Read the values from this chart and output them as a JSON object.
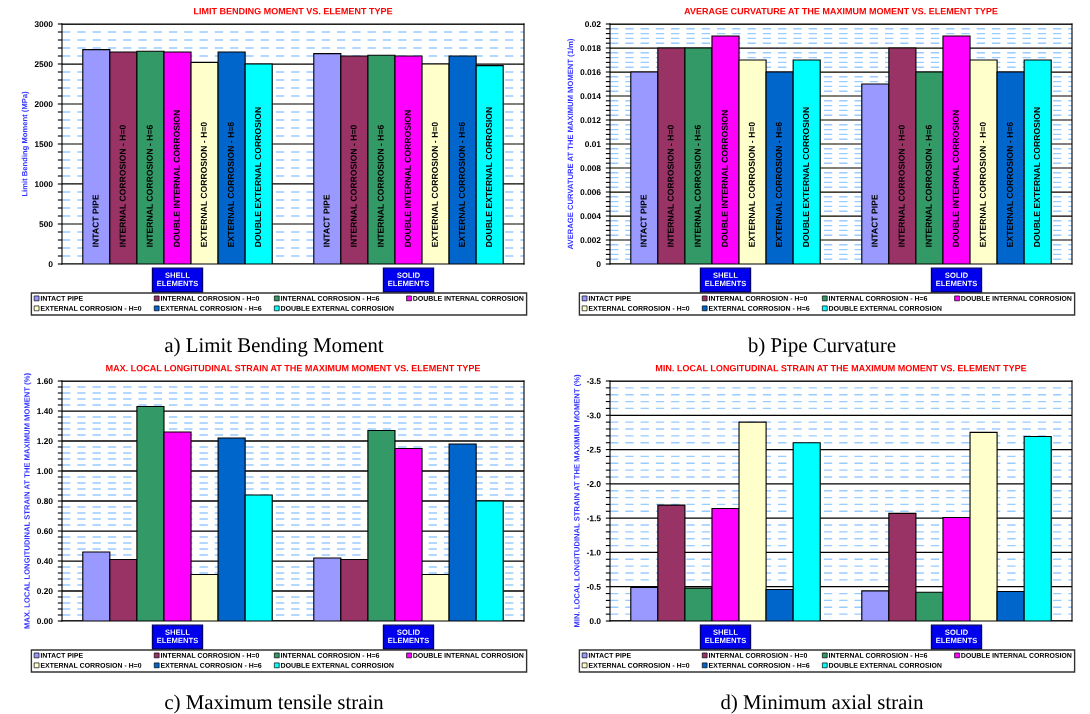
{
  "chart_data": [
    {
      "type": "bar",
      "title": "LIMIT BENDING MOMENT VS. ELEMENT TYPE",
      "subtitle": "a) Limit Bending Moment",
      "ylabel": "Limit Bending Moment (MPa)",
      "categories": [
        "SHELL ELEMENTS",
        "SOLID ELEMENTS"
      ],
      "ylim": [
        0,
        3000
      ],
      "yticks": [
        0,
        {
          "value": 100,
          "label": null
        },
        {
          "value": 200,
          "label": null
        },
        {
          "value": 300,
          "label": null
        },
        {
          "value": 400,
          "label": null
        },
        500,
        {
          "value": 600,
          "label": null
        },
        {
          "value": 700,
          "label": null
        },
        {
          "value": 800,
          "label": null
        },
        {
          "value": 900,
          "label": null
        },
        1000,
        {
          "value": 1100,
          "label": null
        },
        {
          "value": 1200,
          "label": null
        },
        {
          "value": 1300,
          "label": null
        },
        {
          "value": 1400,
          "label": null
        },
        1500,
        {
          "value": 1600,
          "label": null
        },
        {
          "value": 1700,
          "label": null
        },
        {
          "value": 1800,
          "label": null
        },
        {
          "value": 1900,
          "label": null
        },
        2000,
        {
          "value": 2100,
          "label": null
        },
        {
          "value": 2200,
          "label": null
        },
        {
          "value": 2300,
          "label": null
        },
        {
          "value": 2400,
          "label": null
        },
        2500,
        {
          "value": 2600,
          "label": null
        },
        {
          "value": 2700,
          "label": null
        },
        {
          "value": 2800,
          "label": null
        },
        {
          "value": 2900,
          "label": null
        },
        3000
      ],
      "grid": "y",
      "legend": "bottom",
      "series": [
        {
          "name": "INTACT PIPE",
          "color": "#9999ff",
          "values": [
            2680,
            2630
          ]
        },
        {
          "name": "INTERNAL CORROSION - H=0",
          "color": "#993366",
          "values": [
            2650,
            2600
          ]
        },
        {
          "name": "INTERNAL CORROSION - H=6",
          "color": "#339966",
          "values": [
            2660,
            2610
          ]
        },
        {
          "name": "DOUBLE INTERNAL CORROSION",
          "color": "#ff00ff",
          "values": [
            2650,
            2600
          ]
        },
        {
          "name": "EXTERNAL CORROSION - H=0",
          "color": "#ffffcc",
          "values": [
            2520,
            2500
          ]
        },
        {
          "name": "EXTERNAL CORROSION - H=6",
          "color": "#0066cc",
          "values": [
            2650,
            2600
          ]
        },
        {
          "name": "DOUBLE EXTERNAL CORROSION",
          "color": "#00ffff",
          "values": [
            2500,
            2480
          ]
        }
      ],
      "annotations": [
        "INTACT PIPE",
        "INTERNAL CORROSION - H=0",
        "INTERNAL CORROSION - H=6",
        "DOUBLE INTERNAL CORROSION",
        "EXTERNAL CORROSION - H=0",
        "EXTERNAL CORROSION - H=6",
        "DOUBLE EXTERNAL CORROSION",
        "INTACT PIPE",
        "INTERNAL CORROSION - H=0",
        "INTERNAL CORROSION - H=6",
        "DOUBLE INTERNAL CORROSION",
        "EXTERNAL CORROSION - H=0",
        "EXTERNAL CORROSION - H=6",
        "DOUBLE EXTERNAL CORROSION"
      ]
    },
    {
      "type": "bar",
      "title": "AVERAGE CURVATURE AT THE MAXIMUM MOMENT VS. ELEMENT TYPE",
      "subtitle": "b) Pipe Curvature",
      "ylabel": "AVERAGE CURVATURE AT THE MAXIMUM MOMENT (1/m)",
      "categories": [
        "SHELL ELEMENTS",
        "SOLID ELEMENTS"
      ],
      "ylim": [
        0,
        0.02
      ],
      "yticks": [
        0,
        {
          "value": 0.0004,
          "label": null
        },
        {
          "value": 0.0008,
          "label": null
        },
        {
          "value": 0.0012,
          "label": null
        },
        {
          "value": 0.0016,
          "label": null
        },
        0.002,
        {
          "value": 0.0024,
          "label": null
        },
        {
          "value": 0.0028,
          "label": null
        },
        {
          "value": 0.0032,
          "label": null
        },
        {
          "value": 0.0036,
          "label": null
        },
        0.004,
        {
          "value": 0.0044,
          "label": null
        },
        {
          "value": 0.0048,
          "label": null
        },
        {
          "value": 0.0052,
          "label": null
        },
        {
          "value": 0.0056,
          "label": null
        },
        0.006,
        {
          "value": 0.0064,
          "label": null
        },
        {
          "value": 0.0068,
          "label": null
        },
        {
          "value": 0.0072,
          "label": null
        },
        {
          "value": 0.0076,
          "label": null
        },
        0.008,
        {
          "value": 0.0084,
          "label": null
        },
        {
          "value": 0.0088,
          "label": null
        },
        {
          "value": 0.0092,
          "label": null
        },
        {
          "value": 0.0096,
          "label": null
        },
        0.01,
        {
          "value": 0.0104,
          "label": null
        },
        {
          "value": 0.0108,
          "label": null
        },
        {
          "value": 0.0112,
          "label": null
        },
        {
          "value": 0.0116,
          "label": null
        },
        0.012,
        {
          "value": 0.0124,
          "label": null
        },
        {
          "value": 0.0128,
          "label": null
        },
        {
          "value": 0.0132,
          "label": null
        },
        {
          "value": 0.0136,
          "label": null
        },
        0.014,
        {
          "value": 0.0144,
          "label": null
        },
        {
          "value": 0.0148,
          "label": null
        },
        {
          "value": 0.0152,
          "label": null
        },
        {
          "value": 0.0156,
          "label": null
        },
        0.016,
        {
          "value": 0.0164,
          "label": null
        },
        {
          "value": 0.0168,
          "label": null
        },
        {
          "value": 0.0172,
          "label": null
        },
        {
          "value": 0.0176,
          "label": null
        },
        0.018,
        {
          "value": 0.0184,
          "label": null
        },
        {
          "value": 0.0188,
          "label": null
        },
        {
          "value": 0.0192,
          "label": null
        },
        {
          "value": 0.0196,
          "label": null
        },
        0.02
      ],
      "grid": "y",
      "legend": "bottom",
      "series": [
        {
          "name": "INTACT PIPE",
          "color": "#9999ff",
          "values": [
            0.016,
            0.015
          ]
        },
        {
          "name": "INTERNAL CORROSION - H=0",
          "color": "#993366",
          "values": [
            0.018,
            0.018
          ]
        },
        {
          "name": "INTERNAL CORROSION - H=6",
          "color": "#339966",
          "values": [
            0.018,
            0.016
          ]
        },
        {
          "name": "DOUBLE INTERNAL CORROSION",
          "color": "#ff00ff",
          "values": [
            0.019,
            0.019
          ]
        },
        {
          "name": "EXTERNAL CORROSION - H=0",
          "color": "#ffffcc",
          "values": [
            0.017,
            0.017
          ]
        },
        {
          "name": "EXTERNAL CORROSION - H=6",
          "color": "#0066cc",
          "values": [
            0.016,
            0.016
          ]
        },
        {
          "name": "DOUBLE EXTERNAL CORROSION",
          "color": "#00ffff",
          "values": [
            0.017,
            0.017
          ]
        }
      ],
      "annotations": [
        "INTACT PIPE",
        "INTERNAL CORROSION - H=0",
        "INTERNAL CORROSION - H=6",
        "DOUBLE INTERNAL CORROSION",
        "EXTERNAL CORROSION - H=0",
        "EXTERNAL CORROSION - H=6",
        "DOUBLE EXTERNAL CORROSION",
        "INTACT PIPE",
        "INTERNAL CORROSION - H=0",
        "INTERNAL CORROSION - H=6",
        "DOUBLE INTERNAL CORROSION",
        "EXTERNAL CORROSION - H=0",
        "EXTERNAL CORROSION - H=6",
        "DOUBLE EXTERNAL CORROSION"
      ]
    },
    {
      "type": "bar",
      "title": "MAX. LOCAL LONGITUDINAL STRAIN AT THE MAXIMUM MOMENT VS. ELEMENT TYPE",
      "subtitle": "c) Maximum tensile strain",
      "ylabel": "MAX. LOCAL LONGITUDINAL STRAIN AT THE MAXIMUM MOMENT (%)",
      "categories": [
        "SHELL ELEMENTS",
        "SOLID ELEMENTS"
      ],
      "ylim": [
        0,
        1.6
      ],
      "yticks": [
        {
          "value": 0,
          "label": "0.00"
        },
        {
          "value": 0.04,
          "label": null
        },
        {
          "value": 0.08,
          "label": null
        },
        {
          "value": 0.12,
          "label": null
        },
        {
          "value": 0.16,
          "label": null
        },
        {
          "value": 0.2,
          "label": "0.20"
        },
        {
          "value": 0.24,
          "label": null
        },
        {
          "value": 0.28,
          "label": null
        },
        {
          "value": 0.32,
          "label": null
        },
        {
          "value": 0.36,
          "label": null
        },
        {
          "value": 0.4,
          "label": "0.40"
        },
        {
          "value": 0.44,
          "label": null
        },
        {
          "value": 0.48,
          "label": null
        },
        {
          "value": 0.52,
          "label": null
        },
        {
          "value": 0.56,
          "label": null
        },
        {
          "value": 0.6,
          "label": "0.60"
        },
        {
          "value": 0.64,
          "label": null
        },
        {
          "value": 0.68,
          "label": null
        },
        {
          "value": 0.72,
          "label": null
        },
        {
          "value": 0.76,
          "label": null
        },
        {
          "value": 0.8,
          "label": "0.80"
        },
        {
          "value": 0.84,
          "label": null
        },
        {
          "value": 0.88,
          "label": null
        },
        {
          "value": 0.92,
          "label": null
        },
        {
          "value": 0.96,
          "label": null
        },
        {
          "value": 1.0,
          "label": "1.00"
        },
        {
          "value": 1.04,
          "label": null
        },
        {
          "value": 1.08,
          "label": null
        },
        {
          "value": 1.12,
          "label": null
        },
        {
          "value": 1.16,
          "label": null
        },
        {
          "value": 1.2,
          "label": "1.20"
        },
        {
          "value": 1.24,
          "label": null
        },
        {
          "value": 1.28,
          "label": null
        },
        {
          "value": 1.32,
          "label": null
        },
        {
          "value": 1.36,
          "label": null
        },
        {
          "value": 1.4,
          "label": "1.40"
        },
        {
          "value": 1.44,
          "label": null
        },
        {
          "value": 1.48,
          "label": null
        },
        {
          "value": 1.52,
          "label": null
        },
        {
          "value": 1.56,
          "label": null
        },
        {
          "value": 1.6,
          "label": "1.60"
        }
      ],
      "grid": "y",
      "legend": "bottom",
      "series": [
        {
          "name": "INTACT PIPE",
          "color": "#9999ff",
          "values": [
            0.46,
            0.42
          ]
        },
        {
          "name": "INTERNAL CORROSION - H=0",
          "color": "#993366",
          "values": [
            0.41,
            0.41
          ]
        },
        {
          "name": "INTERNAL CORROSION - H=6",
          "color": "#339966",
          "values": [
            1.43,
            1.27
          ]
        },
        {
          "name": "DOUBLE INTERNAL CORROSION",
          "color": "#ff00ff",
          "values": [
            1.26,
            1.15
          ]
        },
        {
          "name": "EXTERNAL CORROSION - H=0",
          "color": "#ffffcc",
          "values": [
            0.31,
            0.31
          ]
        },
        {
          "name": "EXTERNAL CORROSION - H=6",
          "color": "#0066cc",
          "values": [
            1.22,
            1.18
          ]
        },
        {
          "name": "DOUBLE EXTERNAL CORROSION",
          "color": "#00ffff",
          "values": [
            0.84,
            0.8
          ]
        }
      ]
    },
    {
      "type": "bar",
      "title": "MIN. LOCAL LONGITUDINAL STRAIN AT THE MAXIMUM MOMENT VS. ELEMENT TYPE",
      "subtitle": "d) Minimum axial strain",
      "ylabel": "MIN. LOCAL LONGITUDINAL STRAIN AT THE MAXIMUM MOMENT (%)",
      "categories": [
        "SHELL ELEMENTS",
        "SOLID ELEMENTS"
      ],
      "ylim": [
        0,
        -3.5
      ],
      "yticks": [
        {
          "value": 0,
          "label": "0.0"
        },
        {
          "value": -0.1,
          "label": null
        },
        {
          "value": -0.2,
          "label": null
        },
        {
          "value": -0.3,
          "label": null
        },
        {
          "value": -0.4,
          "label": null
        },
        {
          "value": -0.5,
          "label": "-0.5"
        },
        {
          "value": -0.6,
          "label": null
        },
        {
          "value": -0.7,
          "label": null
        },
        {
          "value": -0.8,
          "label": null
        },
        {
          "value": -0.9,
          "label": null
        },
        {
          "value": -1.0,
          "label": "-1.0"
        },
        {
          "value": -1.1,
          "label": null
        },
        {
          "value": -1.2,
          "label": null
        },
        {
          "value": -1.3,
          "label": null
        },
        {
          "value": -1.4,
          "label": null
        },
        {
          "value": -1.5,
          "label": "-1.5"
        },
        {
          "value": -1.6,
          "label": null
        },
        {
          "value": -1.7,
          "label": null
        },
        {
          "value": -1.8,
          "label": null
        },
        {
          "value": -1.9,
          "label": null
        },
        {
          "value": -2.0,
          "label": "-2.0"
        },
        {
          "value": -2.1,
          "label": null
        },
        {
          "value": -2.2,
          "label": null
        },
        {
          "value": -2.3,
          "label": null
        },
        {
          "value": -2.4,
          "label": null
        },
        {
          "value": -2.5,
          "label": "-2.5"
        },
        {
          "value": -2.6,
          "label": null
        },
        {
          "value": -2.7,
          "label": null
        },
        {
          "value": -2.8,
          "label": null
        },
        {
          "value": -2.9,
          "label": null
        },
        {
          "value": -3.0,
          "label": "-3.0"
        },
        {
          "value": -3.1,
          "label": null
        },
        {
          "value": -3.2,
          "label": null
        },
        {
          "value": -3.3,
          "label": null
        },
        {
          "value": -3.4,
          "label": null
        },
        {
          "value": -3.5,
          "label": "-3.5"
        }
      ],
      "grid": "y",
      "legend": "bottom",
      "series": [
        {
          "name": "INTACT PIPE",
          "color": "#9999ff",
          "values": [
            -0.49,
            -0.44
          ]
        },
        {
          "name": "INTERNAL CORROSION - H=0",
          "color": "#993366",
          "values": [
            -1.69,
            -1.57
          ]
        },
        {
          "name": "INTERNAL CORROSION - H=6",
          "color": "#339966",
          "values": [
            -0.48,
            -0.42
          ]
        },
        {
          "name": "DOUBLE INTERNAL CORROSION",
          "color": "#ff00ff",
          "values": [
            -1.64,
            -1.51
          ]
        },
        {
          "name": "EXTERNAL CORROSION - H=0",
          "color": "#ffffcc",
          "values": [
            -2.9,
            -2.75
          ]
        },
        {
          "name": "EXTERNAL CORROSION - H=6",
          "color": "#0066cc",
          "values": [
            -0.46,
            -0.43
          ]
        },
        {
          "name": "DOUBLE EXTERNAL CORROSION",
          "color": "#00ffff",
          "values": [
            -2.6,
            -2.69
          ]
        }
      ]
    }
  ]
}
